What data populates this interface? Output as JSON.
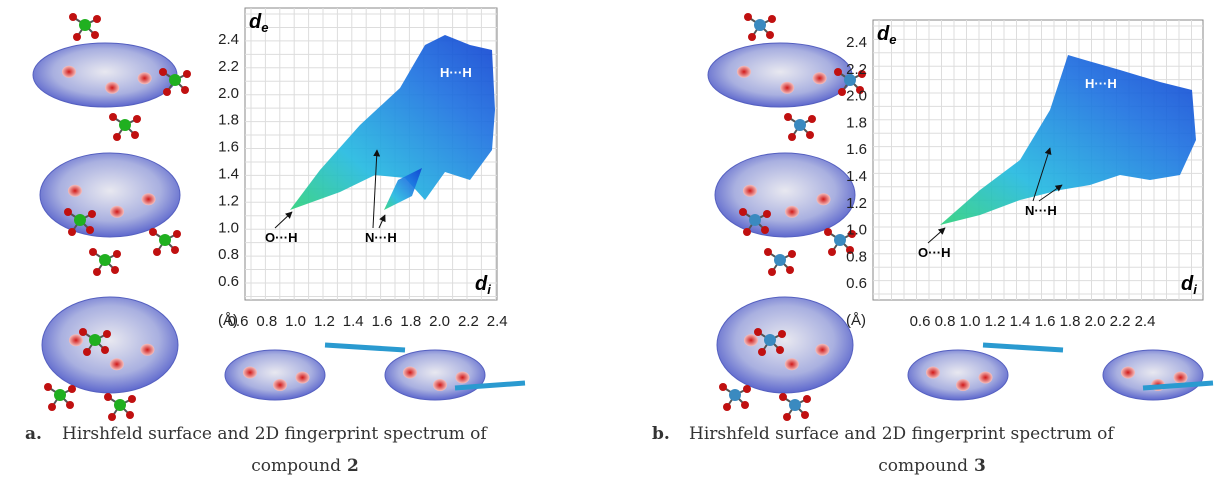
{
  "panels": [
    {
      "label": "a.",
      "caption": "Hirshfeld surface and 2D fingerprint spectrum of",
      "caption_line2": "compound",
      "compound": "2",
      "plot": {
        "y_axis_label": {
          "main": "d",
          "sub": "e"
        },
        "x_axis_label": {
          "main": "d",
          "sub": "i"
        },
        "unit": "(Å)",
        "yticks": [
          "2.4",
          "2.2",
          "2.0",
          "1.8",
          "1.6",
          "1.4",
          "1.2",
          "1.0",
          "0.8",
          "0.6"
        ],
        "xticks": [
          "0.6",
          "0.8",
          "1.0",
          "1.2",
          "1.4",
          "1.6",
          "1.8",
          "2.0",
          "2.2",
          "2.4"
        ],
        "annotations": [
          "O···H",
          "N···H",
          "H···H"
        ]
      }
    },
    {
      "label": "b.",
      "caption": "Hirshfeld surface and 2D fingerprint spectrum of",
      "caption_line2": "compound",
      "compound": "3",
      "plot": {
        "y_axis_label": {
          "main": "d",
          "sub": "e"
        },
        "x_axis_label": {
          "main": "d",
          "sub": "i"
        },
        "unit": "(Å)",
        "yticks": [
          "2.4",
          "2.2",
          "2.0",
          "1.8",
          "1.6",
          "1.4",
          "1.2",
          "1.0",
          "0.8",
          "0.6"
        ],
        "xticks": [
          "0.6",
          "0.8",
          "1.0",
          "1.2",
          "1.4",
          "1.6",
          "1.8",
          "2.0",
          "2.2",
          "2.4"
        ],
        "annotations": [
          "O···H",
          "N···H",
          "H···H"
        ]
      }
    }
  ]
}
